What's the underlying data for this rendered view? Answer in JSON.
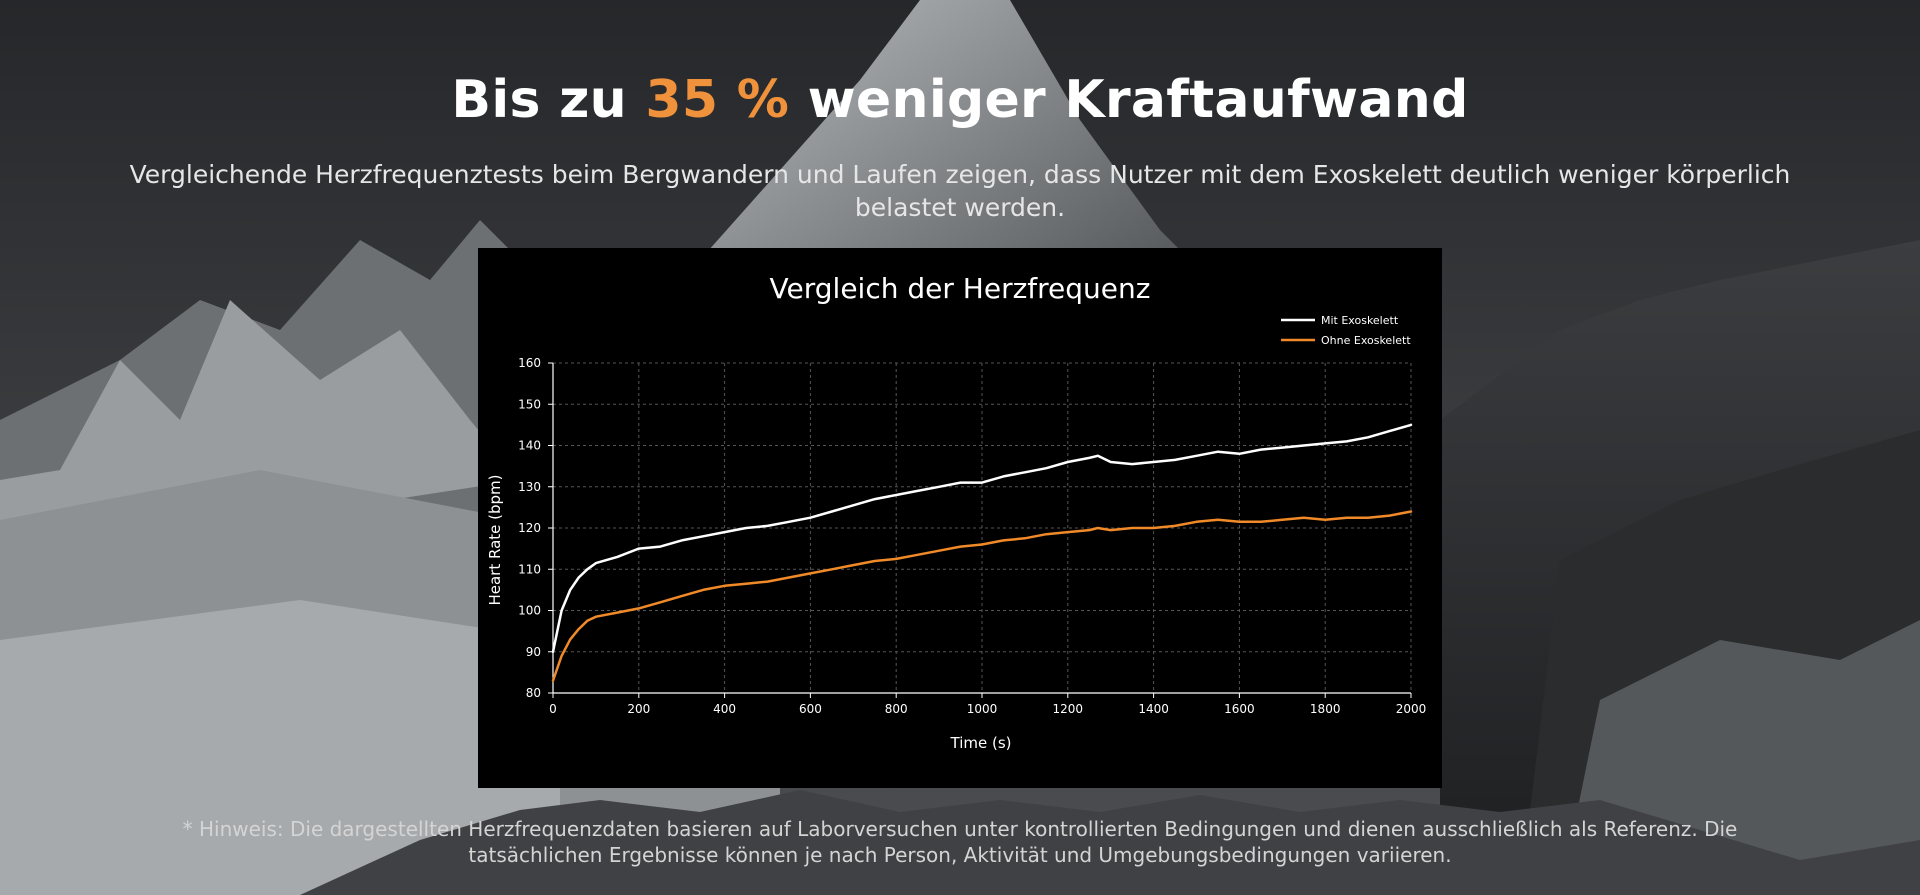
{
  "headline": {
    "before": "Bis zu ",
    "highlight": "35 %",
    "after": " weniger Kraftaufwand"
  },
  "subtitle": "Vergleichende Herzfrequenztests beim Bergwandern und Laufen zeigen, dass Nutzer mit dem Exoskelett deutlich weniger körperlich belastet werden.",
  "footnote": "* Hinweis: Die dargestellten Herzfrequenzdaten basieren auf Laborversuchen unter kontrollierten Bedingungen und dienen ausschließlich als Referenz. Die tatsächlichen Ergebnisse können je nach Person, Aktivität und Umgebungsbedingungen variieren.",
  "colors": {
    "accent": "#f0923b",
    "series_with": "#ffffff",
    "series_without": "#f08a28",
    "chart_background": "#000000"
  },
  "chart_data": {
    "type": "line",
    "title": "Vergleich der Herzfrequenz",
    "xlabel": "Time (s)",
    "ylabel": "Heart Rate (bpm)",
    "xlim": [
      0,
      2000
    ],
    "ylim": [
      80,
      160
    ],
    "xticks": [
      0,
      200,
      400,
      600,
      800,
      1000,
      1200,
      1400,
      1600,
      1800,
      2000
    ],
    "yticks": [
      80,
      90,
      100,
      110,
      120,
      130,
      140,
      150,
      160
    ],
    "grid": true,
    "legend_position": "top-right",
    "x": [
      0,
      20,
      40,
      60,
      80,
      100,
      150,
      200,
      250,
      300,
      350,
      400,
      450,
      500,
      550,
      600,
      650,
      700,
      750,
      800,
      850,
      900,
      950,
      1000,
      1050,
      1100,
      1150,
      1200,
      1250,
      1270,
      1300,
      1350,
      1400,
      1450,
      1500,
      1550,
      1600,
      1650,
      1700,
      1750,
      1800,
      1850,
      1900,
      1950,
      2000
    ],
    "series": [
      {
        "name": "Mit Exoskelett",
        "values": [
          90,
          100,
          105,
          108,
          110,
          111.5,
          113,
          115,
          115.5,
          117,
          118,
          119,
          120,
          120.5,
          121.5,
          122.5,
          124,
          125.5,
          127,
          128,
          129,
          130,
          131,
          131,
          132.5,
          133.5,
          134.5,
          136,
          137,
          137.5,
          136,
          135.5,
          136,
          136.5,
          137.5,
          138.5,
          138,
          139,
          139.5,
          140,
          140.5,
          141,
          142,
          143.5,
          145
        ]
      },
      {
        "name": "Ohne Exoskelett",
        "values": [
          83,
          89,
          93,
          95.5,
          97.5,
          98.5,
          99.5,
          100.5,
          102,
          103.5,
          105,
          106,
          106.5,
          107,
          108,
          109,
          110,
          111,
          112,
          112.5,
          113.5,
          114.5,
          115.5,
          116,
          117,
          117.5,
          118.5,
          119,
          119.5,
          120,
          119.5,
          120,
          120,
          120.5,
          121.5,
          122,
          121.5,
          121.5,
          122,
          122.5,
          122,
          122.5,
          122.5,
          123,
          124
        ]
      }
    ]
  }
}
